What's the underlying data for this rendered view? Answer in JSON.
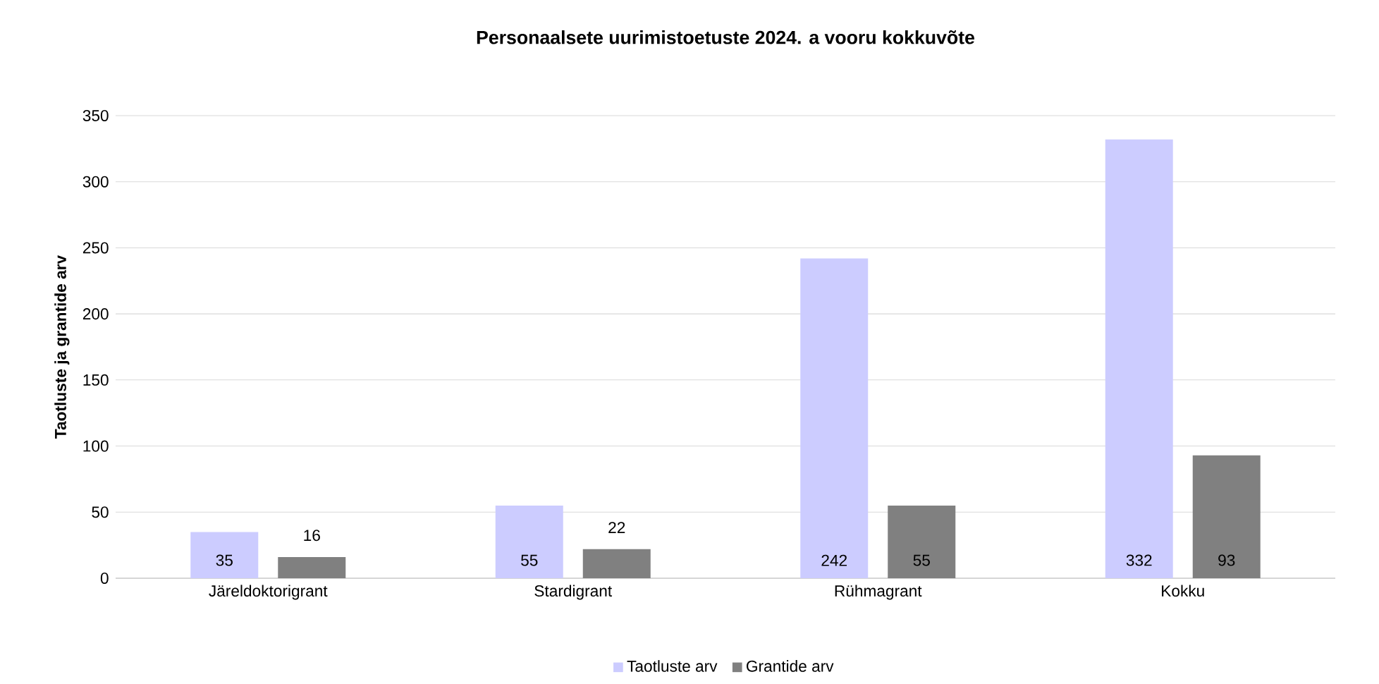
{
  "chart_data": {
    "type": "bar",
    "title": "Personaalsete uurimistoetuste 2024. a vooru kokkuvõte",
    "ylabel": "Taotluste ja grantide arv",
    "categories": [
      "Järeldoktorigrant",
      "Stardigrant",
      "Rühmagrant",
      "Kokku"
    ],
    "series": [
      {
        "name": "Taotluste arv",
        "color": "#ccccff",
        "values": [
          35,
          55,
          242,
          332
        ]
      },
      {
        "name": "Grantide arv",
        "color": "#808080",
        "values": [
          16,
          22,
          55,
          93
        ]
      }
    ],
    "ylim": [
      0,
      350
    ],
    "yticks": [
      0,
      50,
      100,
      150,
      200,
      250,
      300,
      350
    ],
    "grid": "y",
    "legend": "bottom",
    "data_labels": true
  }
}
